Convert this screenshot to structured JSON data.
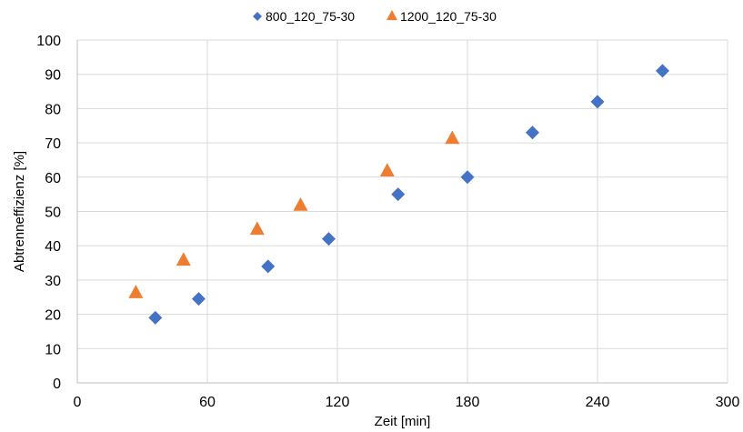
{
  "chart_data": {
    "type": "scatter",
    "title": "",
    "xlabel": "Zeit [min]",
    "ylabel": "Abtrenneffizienz [%]",
    "xlim": [
      0,
      300
    ],
    "ylim": [
      0,
      100
    ],
    "xticks": [
      0,
      60,
      120,
      180,
      240,
      300
    ],
    "yticks": [
      0,
      10,
      20,
      30,
      40,
      50,
      60,
      70,
      80,
      90,
      100
    ],
    "grid": true,
    "legend_position": "top",
    "series": [
      {
        "name": "800_120_75-30",
        "marker": "diamond",
        "color": "#4472c4",
        "points": [
          {
            "x": 36,
            "y": 19
          },
          {
            "x": 56,
            "y": 24.5
          },
          {
            "x": 88,
            "y": 34
          },
          {
            "x": 116,
            "y": 42
          },
          {
            "x": 148,
            "y": 55
          },
          {
            "x": 180,
            "y": 60
          },
          {
            "x": 210,
            "y": 73
          },
          {
            "x": 240,
            "y": 82
          },
          {
            "x": 270,
            "y": 91
          }
        ]
      },
      {
        "name": "1200_120_75-30",
        "marker": "triangle",
        "color": "#ed7d31",
        "points": [
          {
            "x": 27,
            "y": 26.5
          },
          {
            "x": 49,
            "y": 36
          },
          {
            "x": 83,
            "y": 45
          },
          {
            "x": 103,
            "y": 52
          },
          {
            "x": 143,
            "y": 62
          },
          {
            "x": 173,
            "y": 71.5
          }
        ]
      }
    ]
  }
}
